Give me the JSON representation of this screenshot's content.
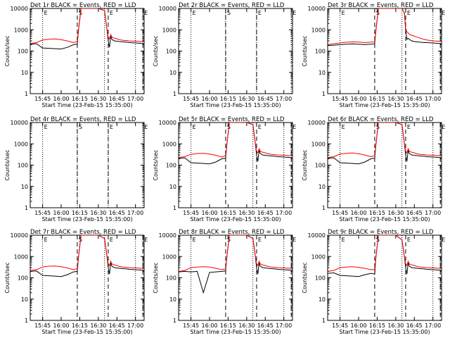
{
  "colors": {
    "events": "#000000",
    "lld": "#ff0000",
    "background": "#ffffff"
  },
  "chart_data": {
    "type": "line",
    "yscale": "log",
    "ylim": [
      1,
      10000
    ],
    "ytick_labels": [
      "1",
      "10",
      "100",
      "1000",
      "10000"
    ],
    "xtick_labels": [
      "15:45",
      "16:00",
      "16:15",
      "16:30",
      "16:45",
      "17:00"
    ],
    "ylabel": "Counts/sec",
    "xlabel": "Start Time (23-Feb-15 15:35:00)",
    "legend_text": "BLACK = Events, RED = LLD",
    "markers": {
      "start_label": "S",
      "end_label": "E"
    },
    "x": [
      0,
      5,
      10,
      15,
      20,
      25,
      30,
      35,
      38,
      39,
      40,
      41,
      42,
      43,
      45,
      50,
      55,
      60,
      62,
      63,
      64,
      65,
      66,
      68,
      70,
      72,
      75,
      78,
      80,
      85,
      90,
      92
    ],
    "panels": [
      {
        "title": "Det 1r BLACK = Events, RED = LLD",
        "has_data": true,
        "dotted_lines": [
          10,
          60,
          85
        ],
        "dashed_lines": [
          38,
          63,
          91
        ],
        "label_positions": [
          10,
          38,
          63,
          91
        ],
        "events": [
          210,
          220,
          140,
          135,
          130,
          125,
          150,
          200,
          210,
          1000,
          3000,
          10000,
          10000,
          10000,
          10000,
          10000,
          10000,
          8000,
          1000,
          300,
          150,
          500,
          350,
          300,
          290,
          280,
          270,
          260,
          250,
          240,
          230,
          225
        ],
        "lld": [
          230,
          250,
          330,
          360,
          370,
          340,
          300,
          250,
          280,
          1000,
          3000,
          10000,
          10000,
          10000,
          10000,
          10000,
          10000,
          8000,
          1000,
          450,
          380,
          600,
          450,
          400,
          380,
          340,
          320,
          310,
          300,
          290,
          280,
          275
        ]
      },
      {
        "title": "Det 2r BLACK = Events, RED = LLD",
        "has_data": false,
        "dotted_lines": [
          10,
          38,
          63,
          91
        ],
        "dashed_lines": [
          38,
          63
        ],
        "label_positions": [
          10,
          38,
          63,
          91
        ],
        "events": [],
        "lld": []
      },
      {
        "title": "Det 3r BLACK = Events, RED = LLD",
        "has_data": true,
        "dotted_lines": [
          10,
          60,
          85
        ],
        "dashed_lines": [
          38,
          63,
          91
        ],
        "label_positions": [
          10,
          38,
          63,
          91
        ],
        "events": [
          180,
          190,
          200,
          210,
          215,
          210,
          200,
          210,
          220,
          1000,
          3000,
          10000,
          10000,
          10000,
          10000,
          10000,
          10000,
          10000,
          6000,
          1000,
          350,
          400,
          350,
          300,
          280,
          270,
          260,
          250,
          250,
          240,
          230,
          225
        ],
        "lld": [
          200,
          220,
          240,
          260,
          270,
          265,
          250,
          260,
          280,
          1000,
          3000,
          10000,
          10000,
          10000,
          10000,
          10000,
          10000,
          10000,
          6000,
          1200,
          800,
          700,
          600,
          550,
          500,
          450,
          400,
          350,
          330,
          300,
          290,
          285
        ]
      },
      {
        "title": "Det 4r BLACK = Events, RED = LLD",
        "has_data": false,
        "dotted_lines": [
          10,
          38,
          63,
          91
        ],
        "dashed_lines": [
          38,
          63
        ],
        "label_positions": [
          10,
          38,
          63,
          91
        ],
        "events": [],
        "lld": []
      },
      {
        "title": "Det 5r BLACK = Events, RED = LLD",
        "has_data": true,
        "dotted_lines": [
          10,
          60,
          85
        ],
        "dashed_lines": [
          38,
          63,
          91
        ],
        "label_positions": [
          10,
          38,
          63,
          91
        ],
        "events": [
          210,
          220,
          130,
          125,
          120,
          115,
          140,
          200,
          210,
          1000,
          3000,
          10000,
          10000,
          10000,
          10000,
          10000,
          10000,
          8000,
          1000,
          300,
          150,
          500,
          350,
          300,
          290,
          280,
          270,
          260,
          250,
          240,
          230,
          225
        ],
        "lld": [
          230,
          250,
          320,
          350,
          360,
          330,
          290,
          240,
          280,
          1000,
          3000,
          10000,
          10000,
          10000,
          10000,
          10000,
          10000,
          8000,
          1000,
          450,
          380,
          600,
          450,
          400,
          380,
          340,
          320,
          310,
          300,
          290,
          280,
          275
        ]
      },
      {
        "title": "Det 6r BLACK = Events, RED = LLD",
        "has_data": true,
        "dotted_lines": [
          10,
          60,
          85
        ],
        "dashed_lines": [
          38,
          63,
          91
        ],
        "label_positions": [
          10,
          38,
          63,
          91
        ],
        "events": [
          210,
          220,
          130,
          125,
          120,
          115,
          140,
          200,
          210,
          1000,
          3000,
          10000,
          10000,
          10000,
          10000,
          10000,
          10000,
          8000,
          1000,
          300,
          150,
          500,
          350,
          300,
          290,
          280,
          270,
          260,
          250,
          240,
          230,
          225
        ],
        "lld": [
          230,
          250,
          330,
          360,
          370,
          340,
          300,
          250,
          280,
          1000,
          3000,
          10000,
          10000,
          10000,
          10000,
          10000,
          10000,
          8000,
          1000,
          450,
          380,
          600,
          450,
          400,
          380,
          340,
          320,
          310,
          300,
          290,
          280,
          275
        ]
      },
      {
        "title": "Det 7r BLACK = Events, RED = LLD",
        "has_data": true,
        "dotted_lines": [
          10,
          60,
          85
        ],
        "dashed_lines": [
          38,
          63,
          91
        ],
        "label_positions": [
          10,
          38,
          63,
          91
        ],
        "events": [
          200,
          210,
          130,
          125,
          120,
          115,
          140,
          190,
          200,
          1000,
          3000,
          10000,
          10000,
          10000,
          10000,
          10000,
          10000,
          7000,
          1000,
          300,
          150,
          500,
          350,
          300,
          290,
          280,
          270,
          260,
          250,
          240,
          230,
          225
        ],
        "lld": [
          220,
          240,
          320,
          350,
          360,
          330,
          290,
          240,
          270,
          1000,
          3000,
          10000,
          10000,
          10000,
          10000,
          10000,
          10000,
          7000,
          1000,
          450,
          380,
          600,
          450,
          400,
          380,
          340,
          320,
          310,
          300,
          290,
          280,
          275
        ]
      },
      {
        "title": "Det 8r BLACK = Events, RED = LLD",
        "has_data": true,
        "dotted_lines": [
          10,
          60,
          85
        ],
        "dashed_lines": [
          38,
          63,
          91
        ],
        "label_positions": [
          10,
          38,
          63,
          91
        ],
        "events": [
          190,
          200,
          190,
          200,
          20,
          180,
          190,
          200,
          210,
          1000,
          3000,
          10000,
          10000,
          10000,
          10000,
          10000,
          10000,
          7000,
          1000,
          300,
          150,
          500,
          350,
          300,
          290,
          280,
          270,
          260,
          250,
          240,
          230,
          225
        ],
        "lld": [
          200,
          220,
          300,
          320,
          330,
          320,
          280,
          240,
          270,
          1000,
          3000,
          10000,
          10000,
          10000,
          10000,
          10000,
          10000,
          7000,
          1000,
          450,
          380,
          600,
          450,
          400,
          380,
          340,
          320,
          310,
          300,
          290,
          280,
          275
        ]
      },
      {
        "title": "Det 9r BLACK = Events, RED = LLD",
        "has_data": true,
        "dotted_lines": [
          10,
          60,
          85
        ],
        "dashed_lines": [
          38,
          63,
          91
        ],
        "label_positions": [
          10,
          38,
          63,
          91
        ],
        "events": [
          160,
          170,
          130,
          125,
          120,
          115,
          140,
          160,
          150,
          1000,
          3000,
          10000,
          10000,
          10000,
          10000,
          10000,
          10000,
          6000,
          1000,
          300,
          150,
          500,
          350,
          300,
          290,
          280,
          270,
          260,
          250,
          240,
          230,
          225
        ],
        "lld": [
          200,
          220,
          300,
          320,
          330,
          310,
          280,
          240,
          250,
          1000,
          3000,
          10000,
          10000,
          10000,
          10000,
          10000,
          10000,
          6000,
          1000,
          450,
          380,
          600,
          450,
          400,
          380,
          340,
          320,
          310,
          300,
          290,
          280,
          275
        ]
      }
    ]
  }
}
